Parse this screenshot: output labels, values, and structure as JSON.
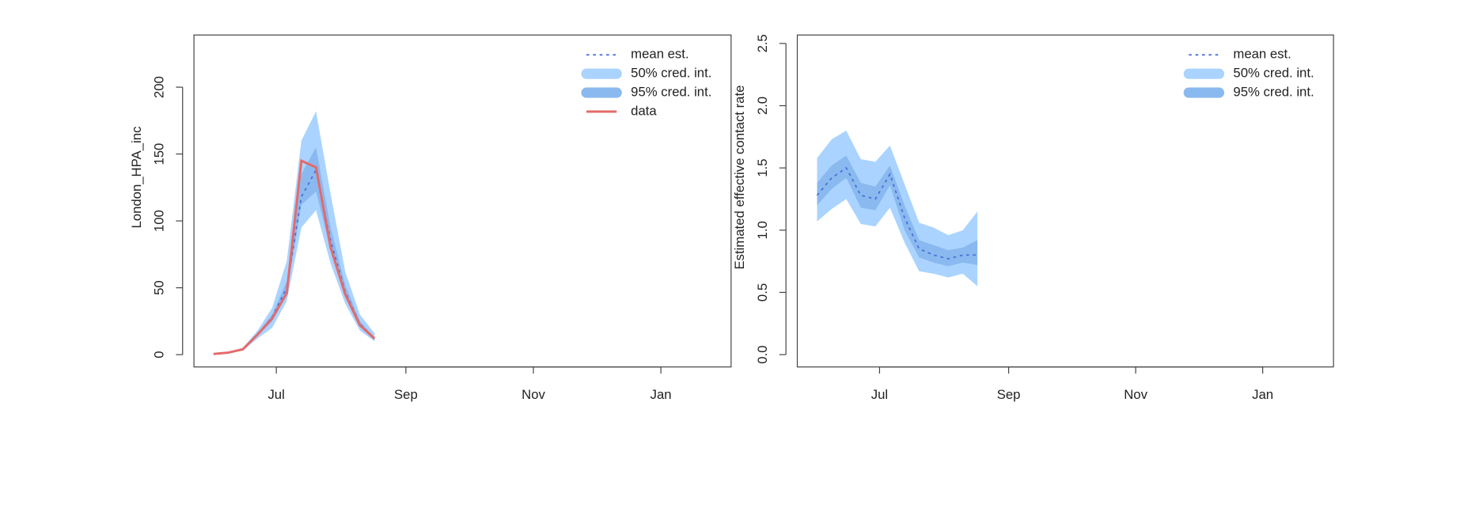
{
  "chart_data": [
    {
      "type": "line",
      "ylabel": "London_HPA_inc",
      "x": [
        -30,
        -23,
        -16,
        -9,
        -2,
        5,
        12,
        19,
        26,
        33,
        40,
        47
      ],
      "xlim": [
        -39.4,
        217.6
      ],
      "xticks": [
        {
          "value": 0,
          "label": "Jul"
        },
        {
          "value": 62,
          "label": "Sep"
        },
        {
          "value": 123,
          "label": "Nov"
        },
        {
          "value": 184,
          "label": "Jan"
        }
      ],
      "ylim": [
        -9.2,
        239
      ],
      "yticks": [
        0,
        50,
        100,
        150,
        200
      ],
      "legend": "top-right",
      "series": [
        {
          "name": "mean est.",
          "color": "#4a6fd8",
          "style": "dotted",
          "values": [
            0.5,
            1.5,
            4,
            15,
            28,
            50,
            118,
            138,
            85,
            47,
            23,
            12
          ]
        },
        {
          "name": "50% cred. int.",
          "color": "#aad4ff",
          "style": "band",
          "lower": [
            0.5,
            1,
            3,
            12,
            20,
            40,
            95,
            108,
            68,
            38,
            18,
            10
          ],
          "upper": [
            1,
            2,
            5,
            18,
            35,
            70,
            160,
            182,
            120,
            62,
            30,
            16
          ]
        },
        {
          "name": "95% cred. int.",
          "color": "#8ab9f0",
          "style": "band",
          "lower": [
            0.5,
            1.5,
            3.5,
            14,
            25,
            45,
            112,
            122,
            78,
            43,
            21,
            11
          ],
          "upper": [
            1,
            2,
            4.5,
            16,
            30,
            55,
            135,
            155,
            95,
            52,
            25,
            13
          ]
        },
        {
          "name": "data",
          "color": "#e46a6a",
          "style": "solid",
          "values": [
            0.5,
            1.5,
            4,
            15,
            27,
            46,
            145,
            140,
            80,
            45,
            22,
            12
          ]
        }
      ]
    },
    {
      "type": "line",
      "ylabel": "Estimated effective contact rate",
      "x": [
        -30,
        -23,
        -16,
        -9,
        -2,
        5,
        12,
        19,
        26,
        33,
        40,
        47
      ],
      "xlim": [
        -39.5,
        218
      ],
      "xticks": [
        {
          "value": 0,
          "label": "Jul"
        },
        {
          "value": 62,
          "label": "Sep"
        },
        {
          "value": 123,
          "label": "Nov"
        },
        {
          "value": 184,
          "label": "Jan"
        }
      ],
      "ylim": [
        -0.099,
        2.568
      ],
      "yticks": [
        {
          "value": 0,
          "label": "0.0"
        },
        0.5,
        {
          "value": 1,
          "label": "1.0"
        },
        1.5,
        {
          "value": 2,
          "label": "2.0"
        },
        2.5
      ],
      "legend": "top-right",
      "series": [
        {
          "name": "mean est.",
          "color": "#4a6fd8",
          "style": "dotted",
          "values": [
            1.28,
            1.42,
            1.5,
            1.28,
            1.25,
            1.45,
            1.1,
            0.85,
            0.8,
            0.77,
            0.8,
            0.8
          ]
        },
        {
          "name": "50% cred. int.",
          "color": "#aad4ff",
          "style": "band",
          "lower": [
            1.07,
            1.17,
            1.25,
            1.05,
            1.03,
            1.18,
            0.9,
            0.67,
            0.65,
            0.62,
            0.65,
            0.55
          ],
          "upper": [
            1.58,
            1.73,
            1.8,
            1.57,
            1.55,
            1.68,
            1.37,
            1.06,
            1.02,
            0.96,
            1.0,
            1.15
          ]
        },
        {
          "name": "95% cred. int.",
          "color": "#8ab9f0",
          "style": "band",
          "lower": [
            1.2,
            1.33,
            1.42,
            1.18,
            1.16,
            1.36,
            1.0,
            0.78,
            0.74,
            0.71,
            0.74,
            0.72
          ],
          "upper": [
            1.38,
            1.52,
            1.6,
            1.38,
            1.35,
            1.52,
            1.2,
            0.92,
            0.88,
            0.84,
            0.86,
            0.92
          ]
        }
      ]
    }
  ]
}
